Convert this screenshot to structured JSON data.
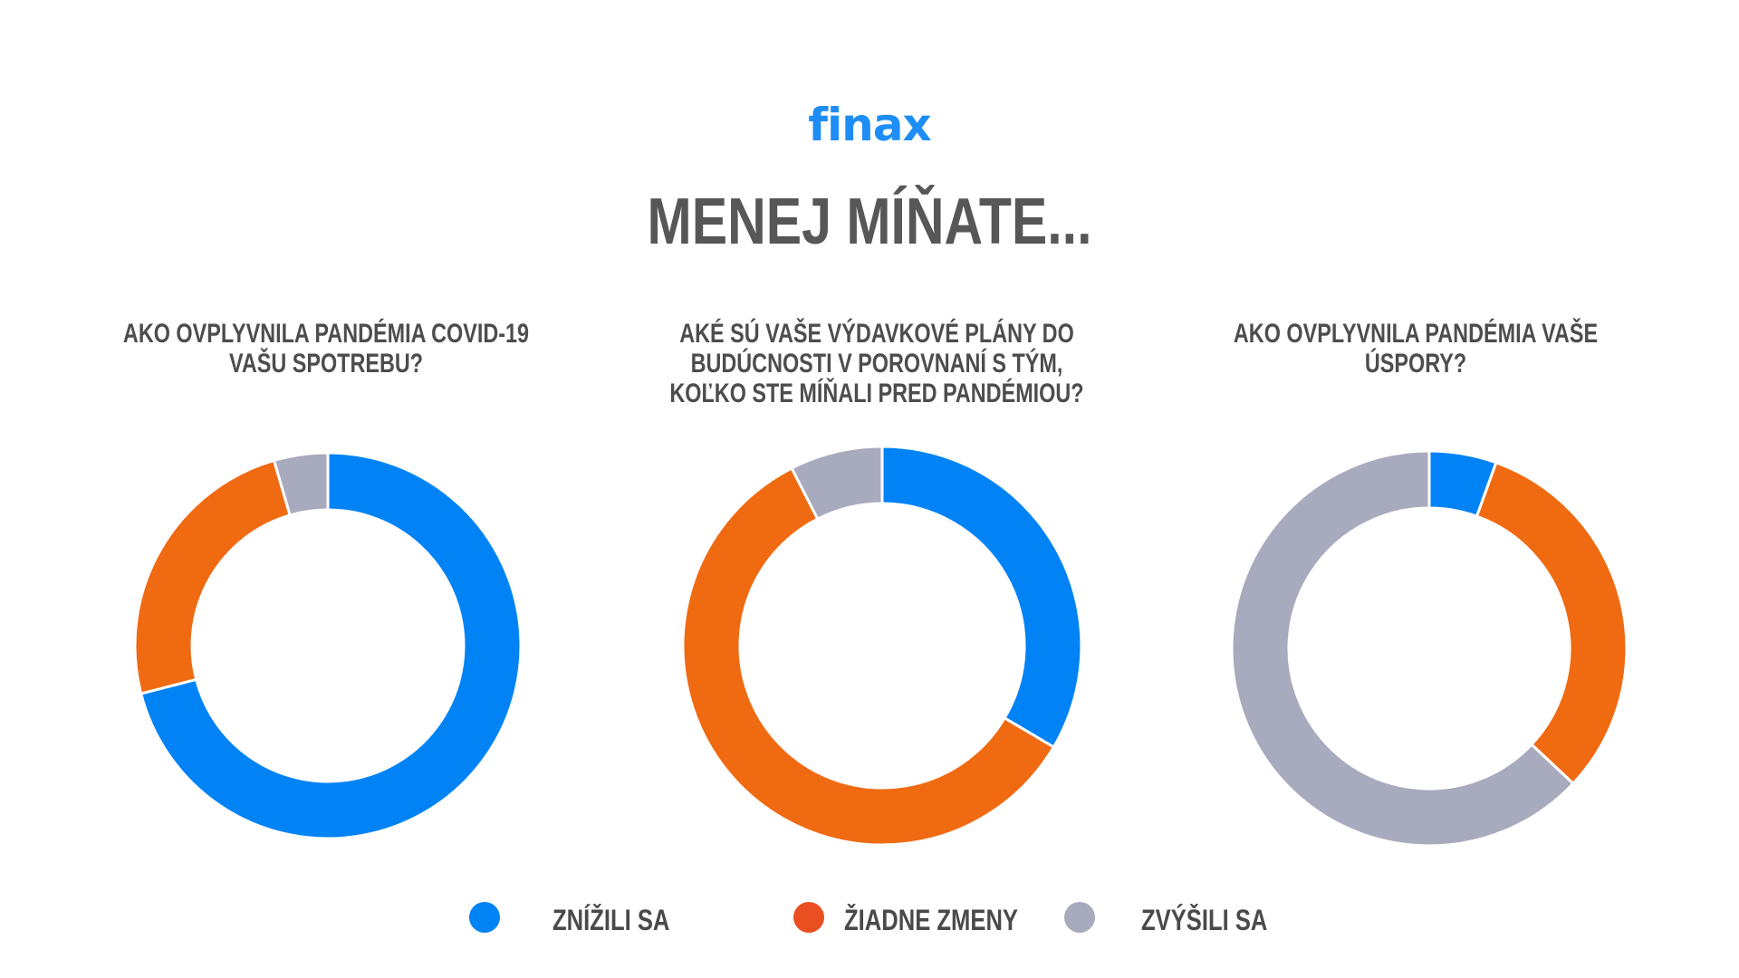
{
  "logo": "finax",
  "title": "MENEJ MÍŇATE...",
  "colors": {
    "znizili": "#0183f5",
    "ziadne": "#f06a12",
    "zvysili": "#a8aabd",
    "legend_ziadne": "#ea4f22",
    "logo": "#1e8df5",
    "text": "#4d4d4d"
  },
  "legend": [
    {
      "label": "ZNÍŽILI SA",
      "color": "#0183f5"
    },
    {
      "label": "ŽIADNE ZMENY",
      "color": "#ea4f22"
    },
    {
      "label": "ZVÝŠILI SA",
      "color": "#a8aabd"
    }
  ],
  "chart_data": [
    {
      "type": "pie",
      "donut": true,
      "title": "AKO OVPLYVNILA PANDÉMIA COVID-19 VAŠU SPOTREBU?",
      "categories": [
        "ZNÍŽILI SA",
        "ŽIADNE ZMENY",
        "ZVÝŠILI SA"
      ],
      "values": [
        71,
        24.5,
        4.5
      ],
      "colors": [
        "#0183f5",
        "#f06a12",
        "#a8aabd"
      ]
    },
    {
      "type": "pie",
      "donut": true,
      "title": "AKÉ SÚ VAŠE VÝDAVKOVÉ PLÁNY DO BUDÚCNOSTI V POROVNANÍ S TÝM, KOĽKO STE MÍŇALI PRED PANDÉMIOU?",
      "categories": [
        "ZNÍŽILI SA",
        "ŽIADNE ZMENY",
        "ZVÝŠILI SA"
      ],
      "values": [
        33.5,
        59,
        7.5
      ],
      "colors": [
        "#0183f5",
        "#f06a12",
        "#a8aabd"
      ]
    },
    {
      "type": "pie",
      "donut": true,
      "title": "AKO OVPLYVNILA PANDÉMIA VAŠE ÚSPORY?",
      "categories": [
        "ZNÍŽILI SA",
        "ŽIADNE ZMENY",
        "ZVÝŠILI SA"
      ],
      "values": [
        5.5,
        31.5,
        63
      ],
      "colors": [
        "#0183f5",
        "#f06a12",
        "#a8aabd"
      ]
    }
  ]
}
